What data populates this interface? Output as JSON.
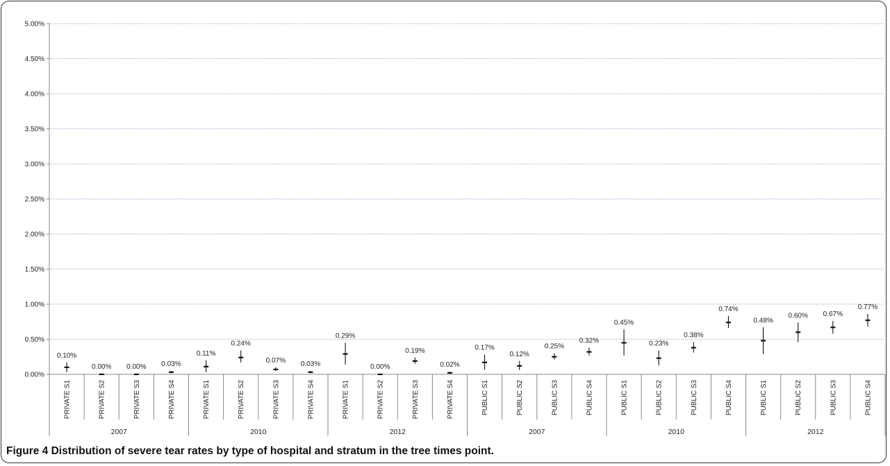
{
  "caption": {
    "label": "Figure 4",
    "text": "Distribution of severe tear rates by type of hospital and stratum in the tree times point."
  },
  "chart_data": {
    "type": "error-bar",
    "y_ticks": [
      "0.00%",
      "0.50%",
      "1.00%",
      "1.50%",
      "2.00%",
      "2.50%",
      "3.00%",
      "3.50%",
      "4.00%",
      "4.50%",
      "5.00%"
    ],
    "ylim": [
      0,
      5
    ],
    "grid": true,
    "group_labels": [
      "2007",
      "2010",
      "2012",
      "2007",
      "2010",
      "2012"
    ],
    "categories": [
      "PRIVATE S1",
      "PRIVATE S2",
      "PRIVATE S3",
      "PRIVATE S4",
      "PRIVATE S1",
      "PRIVATE S2",
      "PRIVATE S3",
      "PRIVATE S4",
      "PRIVATE S1",
      "PRIVATE S2",
      "PRIVATE S3",
      "PRIVATE S4",
      "PUBLIC S1",
      "PUBLIC S2",
      "PUBLIC S3",
      "PUBLIC S4",
      "PUBLIC S1",
      "PUBLIC S2",
      "PUBLIC S3",
      "PUBLIC S4",
      "PUBLIC S1",
      "PUBLIC S2",
      "PUBLIC S3",
      "PUBLIC S4"
    ],
    "values": [
      0.1,
      0.0,
      0.0,
      0.03,
      0.11,
      0.24,
      0.07,
      0.03,
      0.29,
      0.0,
      0.19,
      0.02,
      0.17,
      0.12,
      0.25,
      0.32,
      0.45,
      0.23,
      0.38,
      0.74,
      0.48,
      0.6,
      0.67,
      0.77
    ],
    "value_labels": [
      "0.10%",
      "0.00%",
      "0.00%",
      "0.03%",
      "0.11%",
      "0.24%",
      "0.07%",
      "0.03%",
      "0.29%",
      "0.00%",
      "0.19%",
      "0.02%",
      "0.17%",
      "0.12%",
      "0.25%",
      "0.32%",
      "0.45%",
      "0.23%",
      "0.38%",
      "0.74%",
      "0.48%",
      "0.60%",
      "0.67%",
      "0.77%"
    ],
    "lower": [
      0.03,
      0.0,
      0.0,
      0.02,
      0.03,
      0.17,
      0.05,
      0.02,
      0.14,
      0.0,
      0.15,
      0.01,
      0.07,
      0.06,
      0.21,
      0.27,
      0.27,
      0.13,
      0.31,
      0.66,
      0.29,
      0.46,
      0.58,
      0.68
    ],
    "upper": [
      0.17,
      0.01,
      0.01,
      0.05,
      0.2,
      0.34,
      0.1,
      0.05,
      0.45,
      0.01,
      0.24,
      0.04,
      0.28,
      0.19,
      0.3,
      0.38,
      0.64,
      0.34,
      0.46,
      0.83,
      0.67,
      0.74,
      0.76,
      0.86
    ]
  }
}
